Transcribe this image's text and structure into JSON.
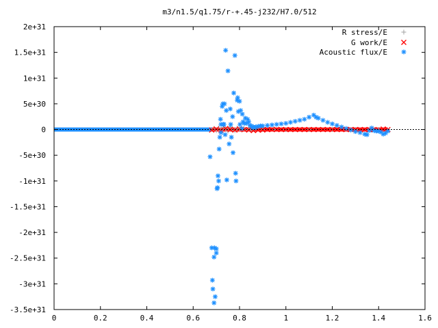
{
  "chart_data": {
    "type": "scatter",
    "title": "m3/n1.5/q1.75/r-+.45-j232/H7.0/512",
    "xlabel": "",
    "ylabel": "",
    "xlim": [
      0,
      1.6
    ],
    "ylim": [
      -3.5e+31,
      2e+31
    ],
    "x_ticks": [
      "0",
      "0.2",
      "0.4",
      "0.6",
      "0.8",
      "1",
      "1.2",
      "1.4",
      "1.6"
    ],
    "x_tick_values": [
      0,
      0.2,
      0.4,
      0.6,
      0.8,
      1.0,
      1.2,
      1.4,
      1.6
    ],
    "y_ticks": [
      "-3.5e+31",
      "-3e+31",
      "-2.5e+31",
      "-2e+31",
      "-1.5e+31",
      "-1e+31",
      "-5e+30",
      "0",
      "5e+30",
      "1e+31",
      "1.5e+31",
      "2e+31"
    ],
    "y_tick_values": [
      -3.5e+31,
      -3e+31,
      -2.5e+31,
      -2e+31,
      -1.5e+31,
      -1e+31,
      -5e+30,
      0,
      5e+30,
      1e+31,
      1.5e+31,
      2e+31
    ],
    "grid": false,
    "legend_position": "top-right",
    "series": [
      {
        "name": "R stress/E",
        "marker": "+",
        "color": "#a0a0a0",
        "x": [
          0.68,
          0.69,
          0.7,
          0.71,
          0.72,
          0.73,
          0.74,
          0.75,
          0.76,
          0.77,
          0.78,
          0.79,
          0.8,
          0.81,
          0.82,
          0.83,
          0.84,
          0.85,
          0.86,
          0.88,
          0.9,
          0.95,
          1.0,
          1.1,
          1.2,
          1.3,
          1.4
        ],
        "y": [
          0,
          2e+29,
          -2e+29,
          3e+29,
          -1e+29,
          4e+29,
          2e+29,
          -3e+29,
          5e+29,
          1e+29,
          -2e+29,
          3e+29,
          1e+29,
          -1e+29,
          2e+29,
          0,
          1e+29,
          -1e+29,
          0,
          1e+29,
          0,
          0,
          0,
          0,
          0,
          0,
          0
        ]
      },
      {
        "name": "G work/E",
        "marker": "x",
        "color": "#ff0000",
        "x": [
          0.68,
          0.7,
          0.72,
          0.74,
          0.76,
          0.78,
          0.8,
          0.82,
          0.84,
          0.86,
          0.88,
          0.9,
          0.92,
          0.94,
          0.96,
          0.98,
          1.0,
          1.02,
          1.04,
          1.06,
          1.08,
          1.1,
          1.12,
          1.14,
          1.16,
          1.18,
          1.2,
          1.22,
          1.24,
          1.26,
          1.28,
          1.3,
          1.32,
          1.34,
          1.36,
          1.38,
          1.4,
          1.42,
          1.44
        ],
        "y": [
          -1e+29,
          1e+29,
          -2e+29,
          2e+29,
          0,
          -1e+29,
          1e+29,
          0,
          -1e+29,
          -2e+29,
          -1e+29,
          -1e+29,
          0,
          0,
          0,
          0,
          0,
          0,
          0,
          0,
          0,
          0,
          0,
          0,
          0,
          0,
          0,
          0,
          0,
          0,
          0,
          0,
          0,
          0,
          0,
          0,
          -2e+29,
          1e+29,
          0
        ]
      },
      {
        "name": "Acoustic flux/E",
        "marker": "*",
        "color": "#1e90ff",
        "x": [
          0.673,
          0.68,
          0.683,
          0.685,
          0.69,
          0.69,
          0.692,
          0.695,
          0.7,
          0.7,
          0.703,
          0.705,
          0.707,
          0.71,
          0.712,
          0.715,
          0.718,
          0.72,
          0.72,
          0.725,
          0.728,
          0.73,
          0.733,
          0.735,
          0.738,
          0.74,
          0.743,
          0.745,
          0.75,
          0.755,
          0.76,
          0.762,
          0.765,
          0.77,
          0.772,
          0.775,
          0.78,
          0.783,
          0.785,
          0.79,
          0.792,
          0.795,
          0.8,
          0.802,
          0.805,
          0.81,
          0.812,
          0.815,
          0.82,
          0.825,
          0.83,
          0.835,
          0.84,
          0.845,
          0.85,
          0.855,
          0.86,
          0.865,
          0.87,
          0.88,
          0.89,
          0.9,
          0.92,
          0.94,
          0.96,
          0.98,
          1.0,
          1.02,
          1.04,
          1.06,
          1.08,
          1.1,
          1.12,
          1.13,
          1.14,
          1.16,
          1.18,
          1.2,
          1.22,
          1.24,
          1.26,
          1.28,
          1.3,
          1.32,
          1.34,
          1.35,
          1.36,
          1.37,
          1.38,
          1.39,
          1.4,
          1.41,
          1.42,
          1.43,
          1.44
        ],
        "y": [
          -5.3e+30,
          -2.3e+31,
          -2.93e+31,
          -3.1e+31,
          -3.37e+31,
          -2.48e+31,
          -2.3e+31,
          -3.25e+31,
          -2.4e+31,
          -2.32e+31,
          -1.15e+31,
          -1.13e+31,
          -9e+30,
          -1e+31,
          -3.8e+30,
          -1.5e+30,
          2e+30,
          1e+30,
          -6e+29,
          4.5e+30,
          5e+30,
          1e+30,
          1e+30,
          5e+30,
          -1e+30,
          1.54e+31,
          3.7e+30,
          -9.8e+30,
          1.14e+31,
          -2.8e+30,
          4e+30,
          1e+30,
          -1.5e+30,
          2.5e+30,
          -4.5e+30,
          7.1e+30,
          1.44e+31,
          -8.5e+30,
          -1e+31,
          5.7e+30,
          6.2e+30,
          3.5e+30,
          5.5e+30,
          1e+30,
          3.7e+30,
          2e+29,
          3e+30,
          1.5e+30,
          1.2e+30,
          2.2e+30,
          1.2e+30,
          2e+30,
          1.5e+30,
          8e+29,
          7e+29,
          4e+29,
          5e+29,
          3e+29,
          5e+29,
          6e+29,
          7e+29,
          7e+29,
          8e+29,
          9e+29,
          1e+30,
          1.1e+30,
          1.2e+30,
          1.4e+30,
          1.6e+30,
          1.8e+30,
          2e+30,
          2.4e+30,
          2.8e+30,
          2.4e+30,
          2.2e+30,
          1.8e+30,
          1.4e+30,
          1.1e+30,
          8e+29,
          5e+29,
          2e+29,
          -1e+29,
          -4e+29,
          -6e+29,
          -9e+29,
          -1e+30,
          -2e+29,
          3e+29,
          -2e+29,
          -3e+29,
          -3e+29,
          -5e+29,
          -9e+29,
          -7e+29,
          -3e+29
        ]
      }
    ]
  }
}
